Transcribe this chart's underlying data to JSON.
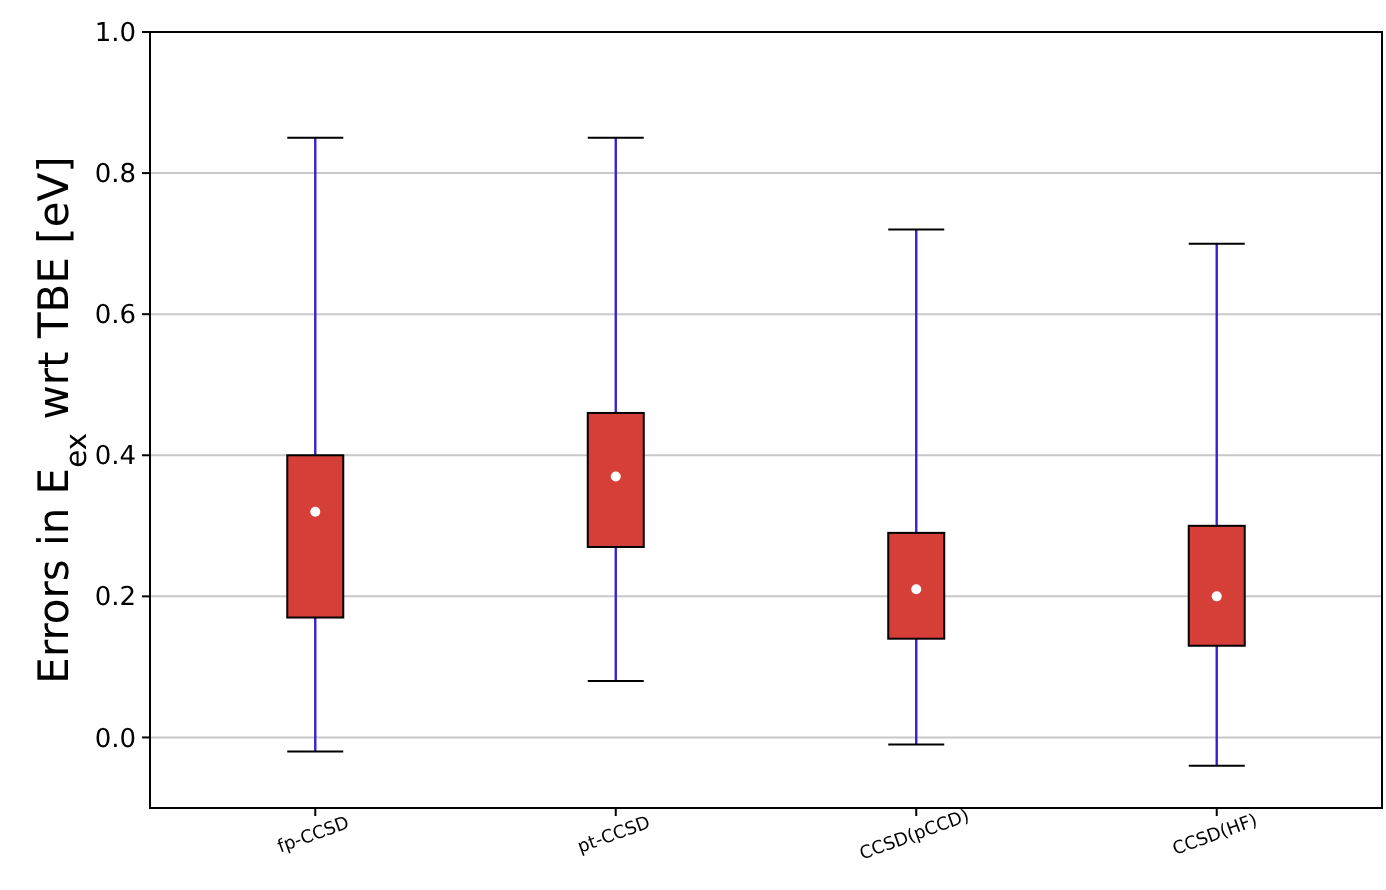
{
  "chart_data": {
    "type": "box",
    "ylabel": "Errors in E$_{ex}$ wrt TBE [eV]",
    "categories": [
      "fp-CCSD",
      "pt-CCSD",
      "CCSD(pCCD)",
      "CCSD(HF)"
    ],
    "color": "#d63f38",
    "boxes": [
      {
        "low": -0.02,
        "q1": 0.17,
        "median": 0.32,
        "q3": 0.4,
        "high": 0.85
      },
      {
        "low": 0.08,
        "q1": 0.27,
        "median": 0.37,
        "q3": 0.46,
        "high": 0.85
      },
      {
        "low": -0.01,
        "q1": 0.14,
        "median": 0.21,
        "q3": 0.29,
        "high": 0.72
      },
      {
        "low": -0.04,
        "q1": 0.13,
        "median": 0.2,
        "q3": 0.3,
        "high": 0.7
      }
    ],
    "ylim": [
      -0.1,
      1.0
    ],
    "yticks": [
      {
        "value": 0,
        "label": "0.0"
      },
      0.2,
      0.4,
      0.6,
      0.8,
      {
        "value": 1,
        "label": "1.0"
      }
    ],
    "grid": "y"
  }
}
